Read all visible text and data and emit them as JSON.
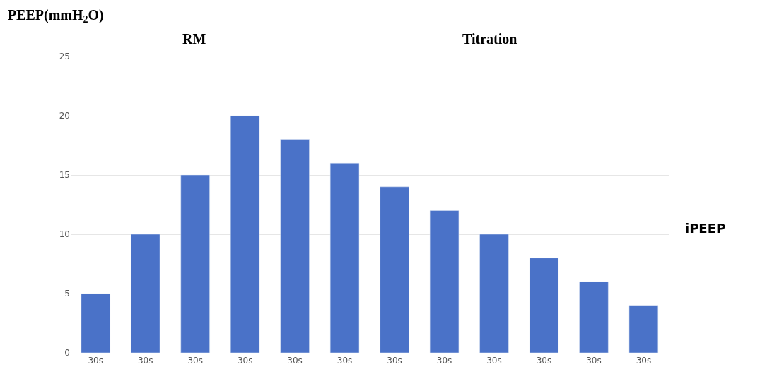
{
  "chart_data": {
    "type": "bar",
    "title": "PEEP(mmH$_{2}$O)",
    "categories": [
      "30s",
      "30s",
      "30s",
      "30s",
      "30s",
      "30s",
      "30s",
      "30s",
      "30s",
      "30s",
      "30s",
      "30s"
    ],
    "series": [
      {
        "color": "#4a72c8",
        "values": [
          5,
          10,
          15,
          20,
          18,
          16,
          14,
          12,
          10,
          8,
          6,
          4
        ]
      }
    ],
    "ylim": [
      0,
      25
    ],
    "yticks": [
      0,
      5,
      10,
      15,
      20,
      25
    ],
    "grid": "y",
    "annotations": [
      "RM",
      "Titration",
      "iPEEP"
    ]
  }
}
